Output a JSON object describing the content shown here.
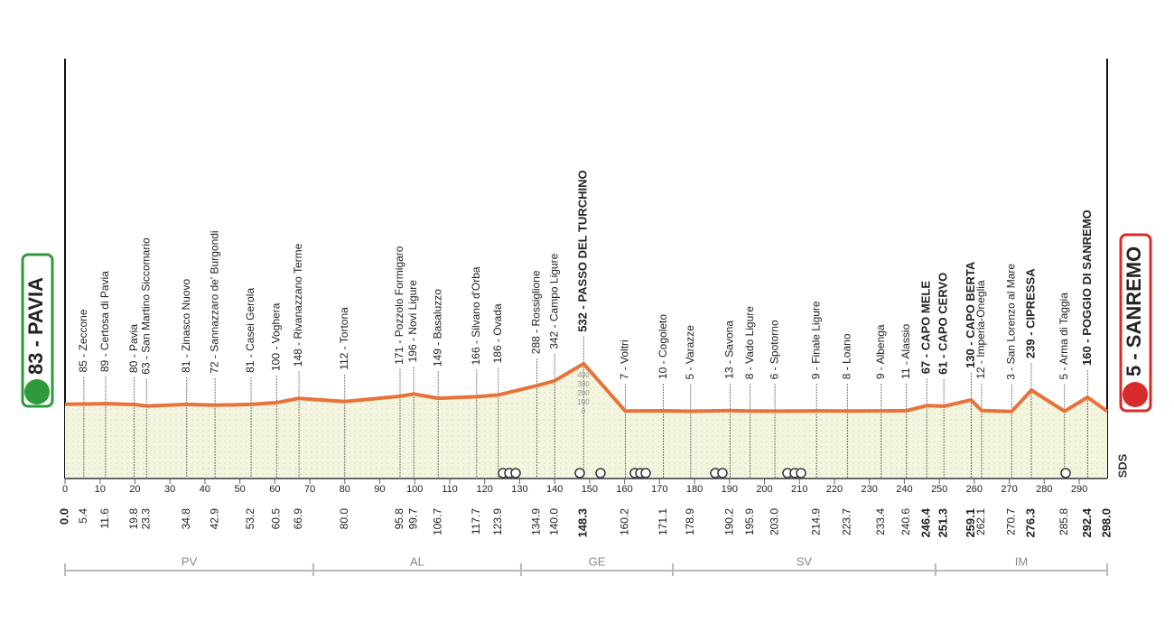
{
  "chart_data": {
    "type": "area",
    "start": {
      "label": "83 - PAVIA",
      "altitude": 83,
      "km": {
        "value": 0,
        "label": "0.0"
      }
    },
    "finish": {
      "label": "5 - SANREMO",
      "altitude": 5,
      "km": {
        "value": 298,
        "label": "298.0"
      }
    },
    "x": [
      5.4,
      11.6,
      19.8,
      23.3,
      34.8,
      42.9,
      53.2,
      60.5,
      66.9,
      {
        "value": 80,
        "label": "80.0"
      },
      95.8,
      99.7,
      106.7,
      117.7,
      123.9,
      134.9,
      {
        "value": 140,
        "label": "140.0"
      },
      148.3,
      160.2,
      171.1,
      178.9,
      190.2,
      195.9,
      {
        "value": 203,
        "label": "203.0"
      },
      214.9,
      223.7,
      233.4,
      240.6,
      246.4,
      251.3,
      259.1,
      262.1,
      270.7,
      276.3,
      285.8,
      292.4
    ],
    "values": [
      85,
      89,
      80,
      63,
      81,
      72,
      81,
      100,
      148,
      112,
      171,
      196,
      149,
      166,
      186,
      288,
      342,
      532,
      7,
      10,
      5,
      13,
      8,
      6,
      9,
      8,
      9,
      11,
      67,
      61,
      130,
      12,
      3,
      239,
      5,
      160
    ],
    "labels": [
      "85 - Zeccone",
      "89 - Certosa di Pavia",
      "80 - Pavia",
      "63 - San Martino Siccomario",
      "81 - Zinasco Nuovo",
      "72 - Sannazzaro de' Burgondi",
      "81 - Casei Gerola",
      "100 - Voghera",
      "148 - Rivanazzano Terme",
      "112 - Tortona",
      "171 - Pozzolo Formigaro",
      "196 - Novi Ligure",
      "149 - Basaluzzo",
      "166 - Silvano d'Orba",
      "186 - Ovada",
      "288 - Rossiglione",
      "342 - Campo Ligure",
      "532 - PASSO DEL TURCHINO",
      "7 - Voltri",
      "10 - Cogoleto",
      "5 - Varazze",
      "13 - Savona",
      "8 - Vado Ligure",
      "6 - Spotorno",
      "9 - Finale Ligure",
      "8 - Loano",
      "9 - Albenga",
      "11 - Alassio",
      "67 - CAPO MELE",
      "61 - CAPO CERVO",
      "130 - CAPO BERTA",
      "12 - Imperia-Oneglia",
      "3 - San Lorenzo al Mare",
      "239 - CIPRESSA",
      "5 - Arma di Taggia",
      "160 - POGGIO DI SANREMO"
    ],
    "bold": [
      false,
      false,
      false,
      false,
      false,
      false,
      false,
      false,
      false,
      false,
      false,
      false,
      false,
      false,
      false,
      false,
      false,
      true,
      false,
      false,
      false,
      false,
      false,
      false,
      false,
      false,
      false,
      false,
      true,
      true,
      true,
      false,
      false,
      true,
      false,
      true
    ],
    "color": "#e8733a",
    "fill": "#f3f5df",
    "xlim": [
      0,
      298
    ],
    "xticks": [
      0,
      10,
      20,
      30,
      40,
      50,
      60,
      70,
      80,
      90,
      100,
      110,
      120,
      130,
      140,
      150,
      160,
      170,
      180,
      190,
      200,
      210,
      220,
      230,
      240,
      250,
      260,
      270,
      280,
      290
    ],
    "ylim": [
      0,
      400
    ],
    "yticks": [
      0,
      100,
      200,
      300,
      400
    ],
    "provinces": [
      {
        "name": "PV",
        "from": 0,
        "to": 71
      },
      {
        "name": "AL",
        "from": 71,
        "to": 130.4
      },
      {
        "name": "GE",
        "from": 130.4,
        "to": 173.8
      },
      {
        "name": "SV",
        "from": 173.8,
        "to": 248.9
      },
      {
        "name": "IM",
        "from": 248.9,
        "to": 298
      }
    ],
    "logo": "SDS"
  }
}
